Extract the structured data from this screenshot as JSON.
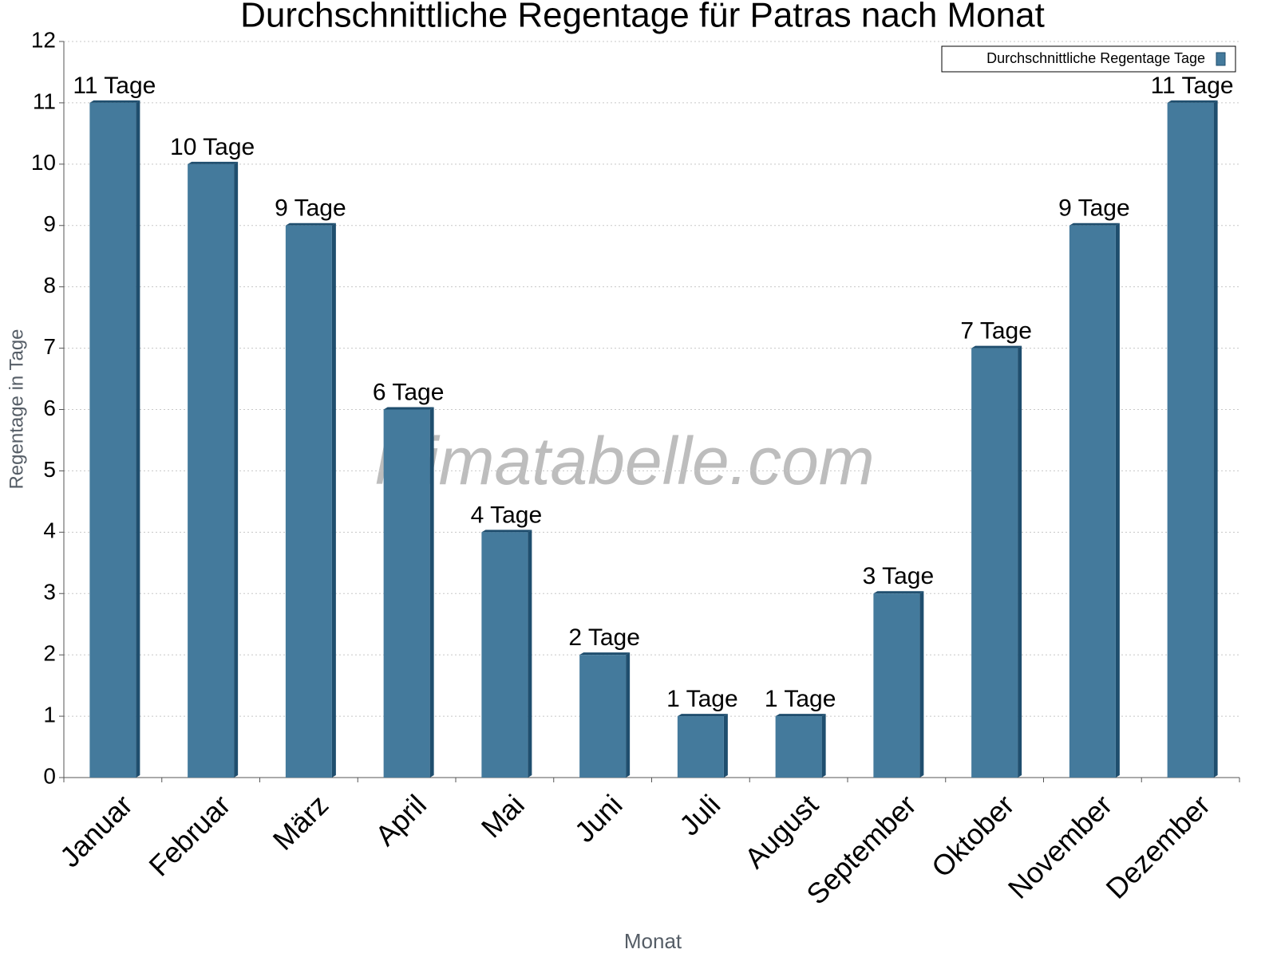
{
  "chart_data": {
    "type": "bar",
    "title": "Durchschnittliche Regentage für Patras nach Monat",
    "x_label": "Monat",
    "y_label": "Regentage in Tage",
    "watermark": "klimatabelle.com",
    "categories": [
      "Januar",
      "Februar",
      "März",
      "April",
      "Mai",
      "Juni",
      "Juli",
      "August",
      "September",
      "Oktober",
      "November",
      "Dezember"
    ],
    "series": [
      {
        "name": "Durchschnittliche Regentage Tage",
        "color": "#447a9c",
        "values": [
          11,
          10,
          9,
          6,
          4,
          2,
          1,
          1,
          3,
          7,
          9,
          11
        ],
        "value_labels": [
          "11 Tage",
          "10 Tage",
          "9 Tage",
          "6 Tage",
          "4 Tage",
          "2 Tage",
          "1 Tage",
          "1 Tage",
          "3 Tage",
          "7 Tage",
          "9 Tage",
          "11 Tage"
        ]
      }
    ],
    "ylim": [
      0,
      12
    ],
    "yticks": [
      0,
      1,
      2,
      3,
      4,
      5,
      6,
      7,
      8,
      9,
      10,
      11,
      12
    ],
    "grid": true,
    "legend": "top-right"
  }
}
